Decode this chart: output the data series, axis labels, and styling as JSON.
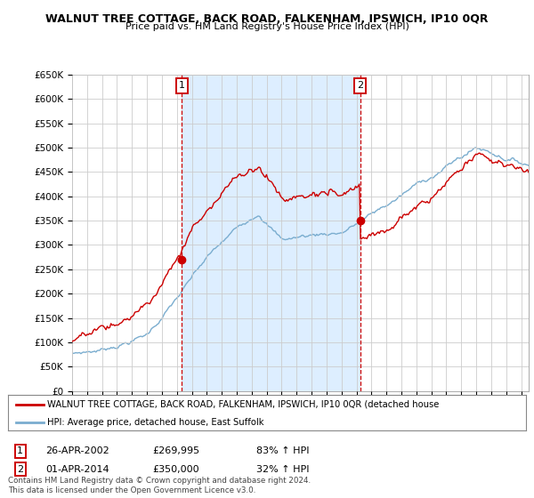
{
  "title": "WALNUT TREE COTTAGE, BACK ROAD, FALKENHAM, IPSWICH, IP10 0QR",
  "subtitle": "Price paid vs. HM Land Registry's House Price Index (HPI)",
  "ylabel_ticks": [
    "£0",
    "£50K",
    "£100K",
    "£150K",
    "£200K",
    "£250K",
    "£300K",
    "£350K",
    "£400K",
    "£450K",
    "£500K",
    "£550K",
    "£600K",
    "£650K"
  ],
  "ytick_values": [
    0,
    50000,
    100000,
    150000,
    200000,
    250000,
    300000,
    350000,
    400000,
    450000,
    500000,
    550000,
    600000,
    650000
  ],
  "ylim": [
    0,
    650000
  ],
  "xlim_start": 1995.0,
  "xlim_end": 2025.5,
  "xtick_years": [
    1995,
    1996,
    1997,
    1998,
    1999,
    2000,
    2001,
    2002,
    2003,
    2004,
    2005,
    2006,
    2007,
    2008,
    2009,
    2010,
    2011,
    2012,
    2013,
    2014,
    2015,
    2016,
    2017,
    2018,
    2019,
    2020,
    2021,
    2022,
    2023,
    2024,
    2025
  ],
  "purchase1_date": 2002.32,
  "purchase1_price": 269995,
  "purchase1_label": "1",
  "purchase2_date": 2014.25,
  "purchase2_price": 350000,
  "purchase2_label": "2",
  "sale_color": "#cc0000",
  "hpi_color": "#7aadcf",
  "vline_color": "#cc0000",
  "shade_color": "#ddeeff",
  "background_color": "#ffffff",
  "grid_color": "#cccccc",
  "legend_text1": "WALNUT TREE COTTAGE, BACK ROAD, FALKENHAM, IPSWICH, IP10 0QR (detached house",
  "legend_text2": "HPI: Average price, detached house, East Suffolk",
  "footnote1": "Contains HM Land Registry data © Crown copyright and database right 2024.",
  "footnote2": "This data is licensed under the Open Government Licence v3.0.",
  "table_row1": [
    "1",
    "26-APR-2002",
    "£269,995",
    "83% ↑ HPI"
  ],
  "table_row2": [
    "2",
    "01-APR-2014",
    "£350,000",
    "32% ↑ HPI"
  ]
}
